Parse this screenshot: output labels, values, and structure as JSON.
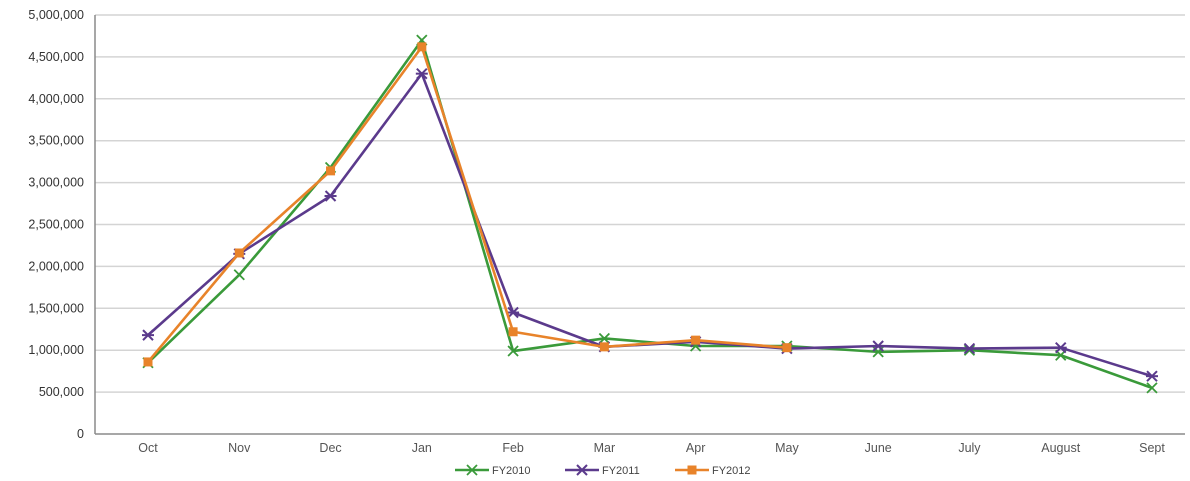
{
  "chart_data": {
    "type": "line",
    "categories": [
      "Oct",
      "Nov",
      "Dec",
      "Jan",
      "Feb",
      "Mar",
      "Apr",
      "May",
      "June",
      "July",
      "August",
      "Sept"
    ],
    "series": [
      {
        "name": "FY2010",
        "color": "#3a9a3a",
        "marker": "star",
        "values": [
          850000,
          1900000,
          3180000,
          4700000,
          990000,
          1140000,
          1050000,
          1050000,
          980000,
          1000000,
          940000,
          550000
        ]
      },
      {
        "name": "FY2011",
        "color": "#5b3a8c",
        "marker": "asterisk",
        "values": [
          1180000,
          2150000,
          2840000,
          4300000,
          1450000,
          1040000,
          1100000,
          1020000,
          1050000,
          1020000,
          1030000,
          690000
        ]
      },
      {
        "name": "FY2012",
        "color": "#e8832a",
        "marker": "square",
        "values": [
          860000,
          2160000,
          3140000,
          4620000,
          1220000,
          1040000,
          1120000,
          1030000,
          null,
          null,
          null,
          null
        ]
      }
    ],
    "y_ticks": [
      "0",
      "500,000",
      "1,000,000",
      "1,500,000",
      "2,000,000",
      "2,500,000",
      "3,000,000",
      "3,500,000",
      "4,000,000",
      "4,500,000",
      "5,000,000"
    ],
    "ylim": [
      0,
      5000000
    ],
    "grid": true,
    "legend_position": "bottom",
    "title": "",
    "xlabel": "",
    "ylabel": ""
  }
}
